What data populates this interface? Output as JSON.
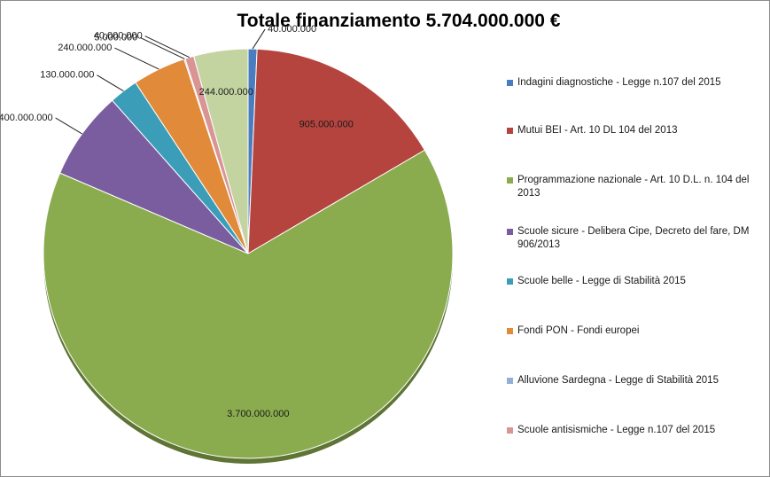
{
  "chart_data": {
    "type": "pie",
    "title": "Totale finanziamento 5.704.000.000 €",
    "legend_position": "right",
    "series": [
      {
        "values": [
          40000000,
          905000000,
          3700000000,
          400000000,
          130000000,
          240000000,
          5000000,
          40000000,
          244000000
        ]
      }
    ],
    "slices": [
      {
        "label": "Indagini diagnostiche - Legge n.107 del 2015",
        "value": 40000000,
        "value_label": "40.000.000",
        "color": "#4a7dbf",
        "legend": true
      },
      {
        "label": "Mutui BEI - Art. 10 DL 104 del 2013",
        "value": 905000000,
        "value_label": "905.000.000",
        "color": "#b5443f",
        "legend": true
      },
      {
        "label": "Programmazione nazionale - Art. 10 D.L. n. 104 del 2013",
        "value": 3700000000,
        "value_label": "3.700.000.000",
        "color": "#8aac4e",
        "legend": true
      },
      {
        "label": "Scuole sicure - Delibera Cipe, Decreto del fare, DM 906/2013",
        "value": 400000000,
        "value_label": "400.000.000",
        "color": "#7a5d9e",
        "legend": true
      },
      {
        "label": "Scuole belle - Legge di Stabilità 2015",
        "value": 130000000,
        "value_label": "130.000.000",
        "color": "#3b9db8",
        "legend": true
      },
      {
        "label": "Fondi PON - Fondi europei",
        "value": 240000000,
        "value_label": "240.000.000",
        "color": "#e08a3a",
        "legend": true
      },
      {
        "label": "Alluvione Sardegna - Legge di Stabilità 2015",
        "value": 5000000,
        "value_label": "5.000.000",
        "color": "#94aed6",
        "legend": true
      },
      {
        "label": "Scuole antisismiche - Legge n.107 del 2015",
        "value": 40000000,
        "value_label": "40.000.000",
        "color": "#d99593",
        "legend": true
      },
      {
        "label": "",
        "value": 244000000,
        "value_label": "244.000.000",
        "color": "#c3d4a0",
        "legend": false
      }
    ]
  }
}
